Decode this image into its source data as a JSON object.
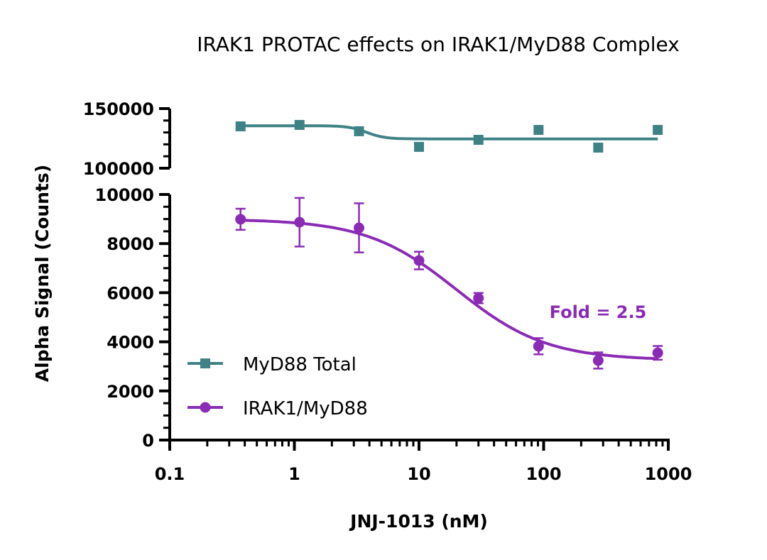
{
  "chart_data": {
    "type": "scatter",
    "title": "IRAK1 PROTAC effects on IRAK1/MyD88 Complex",
    "xlabel": "JNJ-1013 (nM)",
    "ylabel": "Alpha Signal (Counts)",
    "x_scale": "log",
    "xlim": [
      0.1,
      1000
    ],
    "x_ticks": [
      "0.1",
      "1",
      "10",
      "100",
      "1000"
    ],
    "y_axis_break": true,
    "ylim_lower": [
      0,
      10000
    ],
    "y_ticks_lower": [
      "0",
      "2000",
      "4000",
      "6000",
      "8000",
      "10000"
    ],
    "ylim_upper": [
      100000,
      150000
    ],
    "y_ticks_upper": [
      "100000",
      "150000"
    ],
    "legend_position": "bottom-left",
    "annotation": {
      "text": "Fold = 2.5",
      "color": "#8a2bb5"
    },
    "x": [
      0.37,
      1.1,
      3.3,
      10,
      30,
      91,
      274,
      823
    ],
    "series": [
      {
        "name": "MyD88 Total",
        "color": "#3e8286",
        "marker": "square",
        "panel": "upper",
        "values": [
          135100,
          136300,
          131000,
          117900,
          123800,
          132100,
          117300,
          132100
        ],
        "fit": {
          "top": 135600,
          "bottom": 124600,
          "ic50": 3.8,
          "hill": 6
        }
      },
      {
        "name": "IRAK1/MyD88",
        "color": "#8a2bb5",
        "marker": "circle",
        "panel": "lower",
        "values": [
          8990,
          8870,
          8640,
          7310,
          5780,
          3820,
          3240,
          3550
        ],
        "error": [
          430,
          990,
          1000,
          360,
          210,
          330,
          330,
          280
        ],
        "fit": {
          "top": 9000,
          "bottom": 3250,
          "ic50": 20,
          "hill": 1.2
        }
      }
    ]
  }
}
